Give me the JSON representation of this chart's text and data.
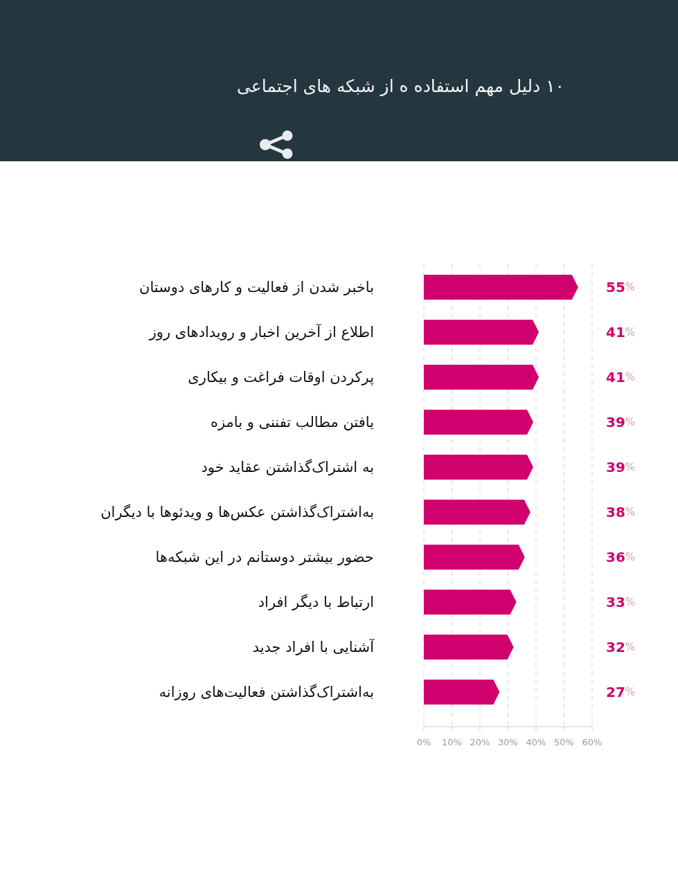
{
  "chart_data": {
    "type": "bar",
    "orientation": "horizontal",
    "title": "۱۰ دلیل مهم استفاده ه از شبکه های اجتماعی",
    "categories": [
      "باخبر شدن از فعالیت و کارهای دوستان",
      "اطلاع از آخرین اخبار و رویدادهای روز",
      "پرکردن اوقات فراغت و بیکاری",
      "یافتن مطالب تفننی و بامزه",
      "به اشتراک‌گذاشتن عقاید خود",
      "به‌اشتراک‌گذاشتن عکس‌ها و ویدئوها با دیگران",
      "حضور بیشتر دوستانم در این شبکه‌ها",
      "ارتباط با دیگر افراد",
      "آشنایی با افراد جدید",
      "به‌اشتراک‌گذاشتن فعالیت‌های روزانه"
    ],
    "values": [
      55,
      41,
      41,
      39,
      39,
      38,
      36,
      33,
      32,
      27
    ],
    "color": "#d0006e",
    "value_labels": [
      "55%",
      "41%",
      "41%",
      "39%",
      "39%",
      "38%",
      "36%",
      "33%",
      "32%",
      "27%"
    ],
    "xlim": [
      0,
      60
    ],
    "xticks": [
      {
        "value": 0,
        "label": "0%"
      },
      {
        "value": 10,
        "label": "10%"
      },
      {
        "value": 20,
        "label": "20%"
      },
      {
        "value": 30,
        "label": "30%"
      },
      {
        "value": 40,
        "label": "40%"
      },
      {
        "value": 50,
        "label": "50%"
      },
      {
        "value": 60,
        "label": "60%"
      }
    ],
    "grid": "x"
  }
}
